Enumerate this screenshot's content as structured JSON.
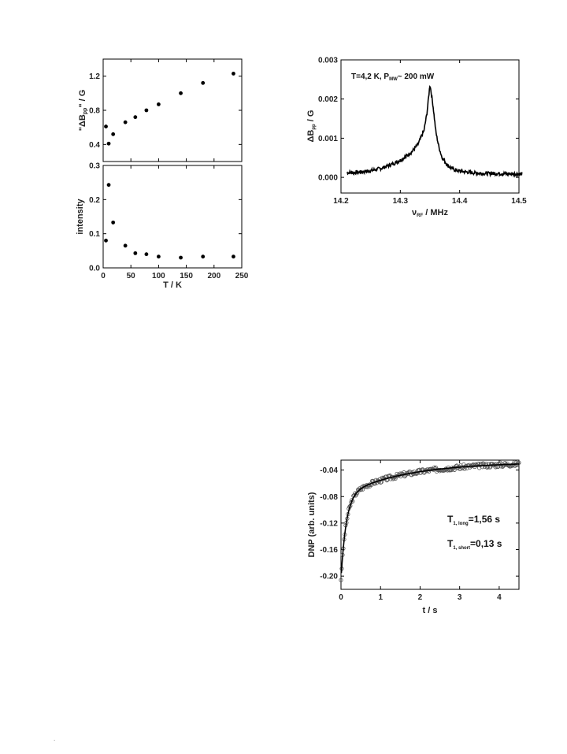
{
  "chart_data": [
    {
      "id": "linewidth",
      "type": "scatter",
      "xlabel": "",
      "ylabel": "\"ΔB",
      "ylabel_sub": "pp",
      "ylabel_tail": "\" / G",
      "xlim": [
        0,
        250
      ],
      "ylim": [
        0.2,
        1.4
      ],
      "xticks": [
        0,
        50,
        100,
        150,
        200,
        250
      ],
      "yticks": [
        0.4,
        0.8,
        1.2
      ],
      "ytick_labels": [
        "0.4",
        "0.8",
        "1.2"
      ],
      "series": [
        {
          "x": [
            5,
            10,
            18,
            40,
            58,
            78,
            100,
            140,
            180,
            235
          ],
          "y": [
            0.61,
            0.41,
            0.52,
            0.66,
            0.72,
            0.8,
            0.87,
            1.0,
            1.12,
            1.23
          ]
        }
      ]
    },
    {
      "id": "intensity",
      "type": "scatter",
      "xlabel": "T / K",
      "ylabel": "intensity",
      "xlim": [
        0,
        250
      ],
      "ylim": [
        0.0,
        0.3
      ],
      "xticks": [
        0,
        50,
        100,
        150,
        200,
        250
      ],
      "xtick_labels": [
        "0",
        "50",
        "100",
        "150",
        "200",
        "250"
      ],
      "yticks": [
        0.0,
        0.1,
        0.2,
        0.3
      ],
      "ytick_labels": [
        "0.0",
        "0.1",
        "0.2",
        "0.3"
      ],
      "series": [
        {
          "x": [
            5,
            10,
            18,
            40,
            58,
            78,
            100,
            140,
            180,
            235
          ],
          "y": [
            0.08,
            0.243,
            0.133,
            0.065,
            0.043,
            0.04,
            0.033,
            0.03,
            0.033,
            0.033
          ]
        }
      ]
    },
    {
      "id": "odmr",
      "type": "line",
      "xlabel": "ν",
      "xlabel_sub": "RF",
      "xlabel_tail": " / MHz",
      "ylabel": "ΔB",
      "ylabel_sub": "pp",
      "ylabel_tail": " / G",
      "xlim": [
        14.2,
        14.5
      ],
      "ylim": [
        -0.0004,
        0.003
      ],
      "xticks": [
        14.2,
        14.3,
        14.4,
        14.5
      ],
      "xtick_labels": [
        "14.2",
        "14.3",
        "14.4",
        "14.5"
      ],
      "yticks": [
        0.0,
        0.001,
        0.002,
        0.003
      ],
      "ytick_labels": [
        "0.000",
        "0.001",
        "0.002",
        "0.003"
      ],
      "annotation": {
        "prefix": "T=4,2 K, P",
        "sub": "MW",
        "suffix": "~ 200 mW"
      },
      "series": [
        {
          "x": [
            14.21,
            14.23,
            14.25,
            14.27,
            14.29,
            14.3,
            14.31,
            14.32,
            14.33,
            14.34,
            14.345,
            14.35,
            14.355,
            14.36,
            14.365,
            14.37,
            14.38,
            14.39,
            14.4,
            14.42,
            14.44,
            14.46,
            14.48,
            14.505
          ],
          "y": [
            0.00012,
            0.00013,
            0.00017,
            0.00024,
            0.00036,
            0.00044,
            0.00054,
            0.00066,
            0.00085,
            0.0012,
            0.00165,
            0.00238,
            0.00185,
            0.00115,
            0.00078,
            0.00052,
            0.0003,
            0.0002,
            0.00016,
            0.00012,
            0.0001,
            0.0001,
            9e-05,
            9e-05
          ]
        }
      ]
    },
    {
      "id": "dnp",
      "type": "scatter",
      "xlabel": "t / s",
      "ylabel": "DNP (arb. units)",
      "xlim": [
        0,
        4.5
      ],
      "ylim": [
        -0.22,
        -0.025
      ],
      "xticks": [
        0,
        1,
        2,
        3,
        4
      ],
      "xtick_labels": [
        "0",
        "1",
        "2",
        "3",
        "4"
      ],
      "yticks": [
        -0.2,
        -0.16,
        -0.12,
        -0.08,
        -0.04
      ],
      "ytick_labels": [
        "-0.20",
        "-0.16",
        "-0.12",
        "-0.08",
        "-0.04"
      ],
      "fit": {
        "t1_long": 1.56,
        "t1_short": 0.13
      },
      "annotations": [
        {
          "prefix": "T",
          "sub": "1, long",
          "suffix": "=1,56 s"
        },
        {
          "prefix": "T",
          "sub": "1, short",
          "suffix": "=0,13 s"
        }
      ]
    }
  ],
  "page_footer_mark": "."
}
